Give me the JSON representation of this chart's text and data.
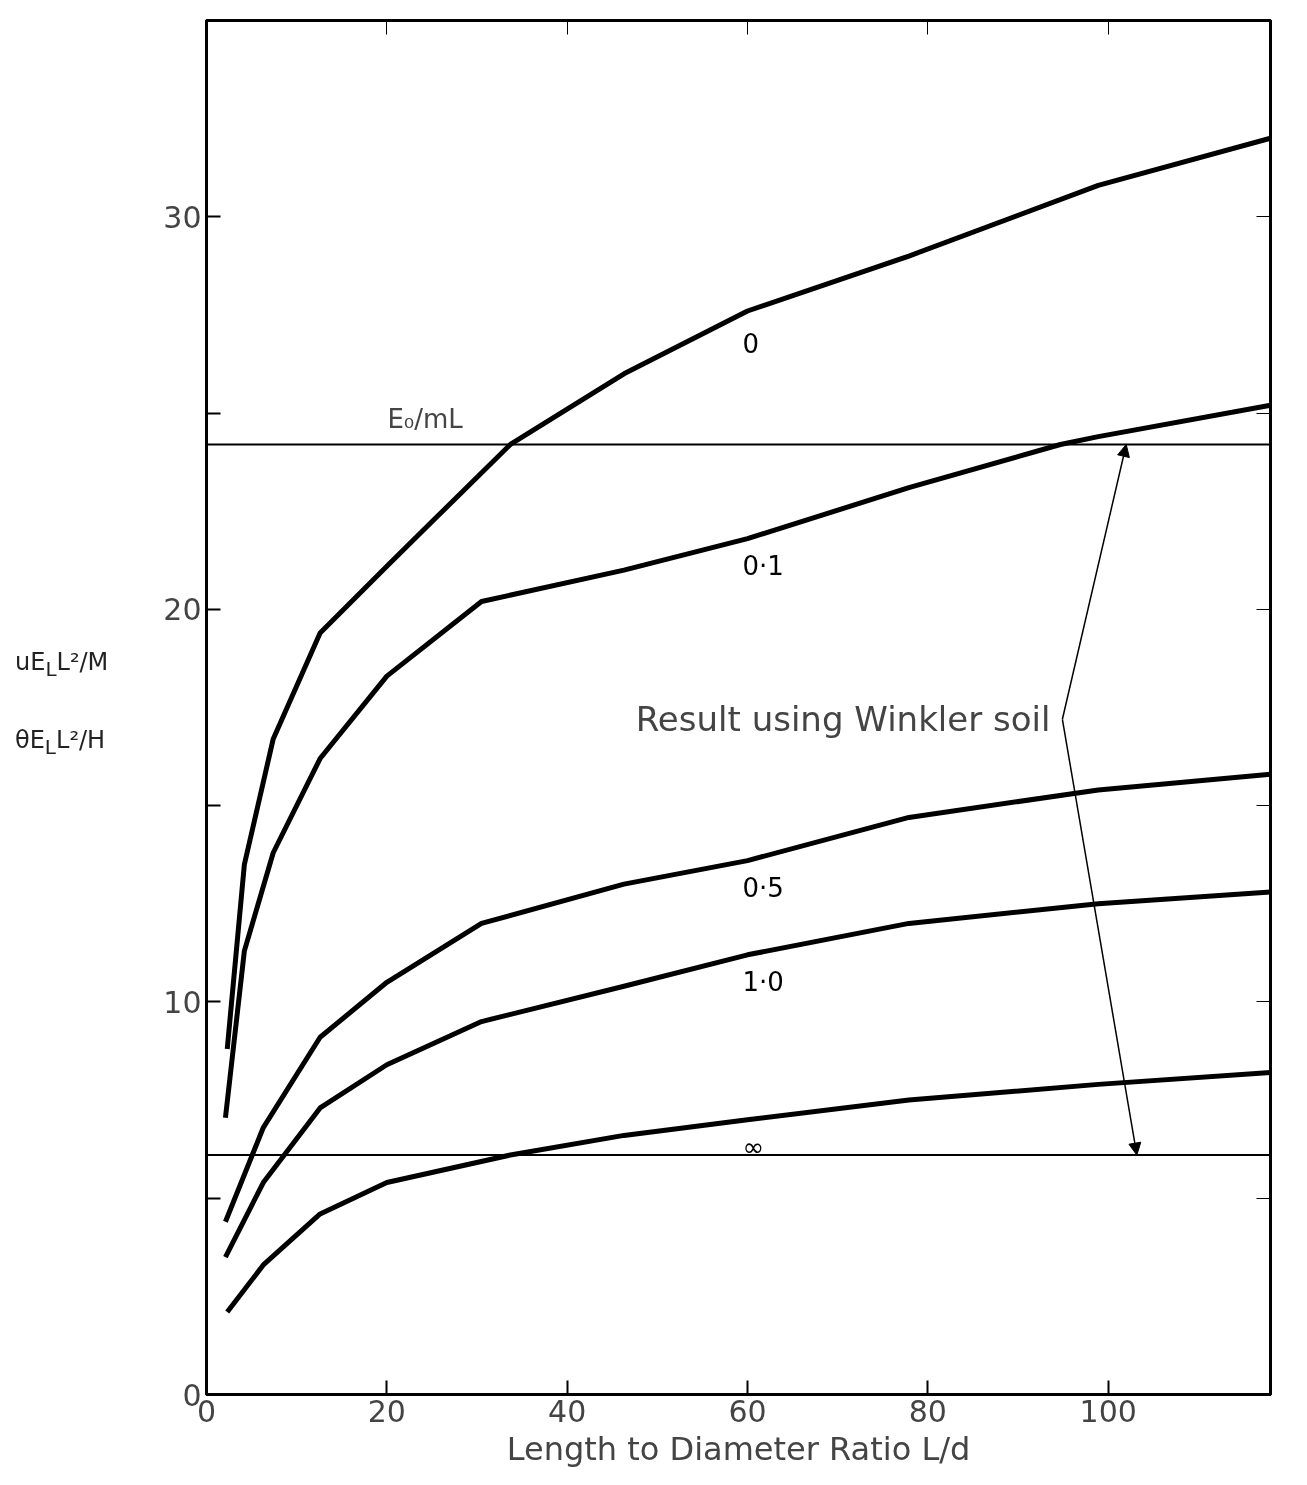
{
  "chart_data": {
    "type": "line",
    "xlabel": "Length to Diameter Ratio L/d",
    "ylabel": "uE$_{L}$L²/M\nθE$_{L}$L²/H",
    "legend_title": "E₀/mL",
    "xlim": [
      0,
      118
    ],
    "ylim": [
      0,
      35
    ],
    "xticks": [
      0,
      20,
      40,
      60,
      80,
      100
    ],
    "yticks": [
      0,
      {
        "value": 5,
        "label": null
      },
      10,
      {
        "value": 15,
        "label": null
      },
      20,
      {
        "value": 25,
        "label": null
      },
      30
    ],
    "grid": false,
    "line_style": "solid",
    "series": [
      {
        "name": "0",
        "color": "#000000",
        "x": [
          2.3,
          4.2,
          7.4,
          12.6,
          20,
          25.3,
          33.7,
          46.3,
          60,
          77.9,
          98.9,
          118
        ],
        "values": [
          8.8,
          13.5,
          16.7,
          19.4,
          21.1,
          22.3,
          24.2,
          26.0,
          27.6,
          29.0,
          30.8,
          32.0
        ]
      },
      {
        "name": "0·1",
        "color": "#000000",
        "x": [
          2.1,
          4.2,
          7.4,
          12.6,
          20,
          30.5,
          46.3,
          60,
          77.9,
          94.7,
          98.9,
          118
        ],
        "values": [
          7.05,
          11.3,
          13.8,
          16.2,
          18.3,
          20.2,
          21.0,
          21.8,
          23.1,
          24.2,
          24.4,
          25.2
        ]
      },
      {
        "name": "0·5",
        "color": "#000000",
        "x": [
          2.1,
          6.3,
          12.6,
          20,
          30.5,
          46.3,
          60,
          77.9,
          98.9,
          118
        ],
        "values": [
          4.4,
          6.8,
          9.1,
          10.5,
          12.0,
          13.0,
          13.6,
          14.7,
          15.4,
          15.8
        ]
      },
      {
        "name": "1·0",
        "color": "#000000",
        "x": [
          2.1,
          6.3,
          12.6,
          20,
          30.5,
          46.3,
          60,
          77.9,
          98.9,
          118
        ],
        "values": [
          3.5,
          5.4,
          7.3,
          8.4,
          9.5,
          10.4,
          11.2,
          12.0,
          12.5,
          12.8
        ]
      },
      {
        "name": "∞",
        "color": "#000000",
        "x": [
          2.3,
          6.3,
          12.6,
          20,
          33.7,
          46.3,
          60,
          77.9,
          98.9,
          118
        ],
        "values": [
          2.1,
          3.3,
          4.6,
          5.4,
          6.1,
          6.6,
          7.0,
          7.5,
          7.9,
          8.2
        ]
      }
    ],
    "ref_lines": [
      {
        "axis": "y",
        "value": 24.2,
        "color": "#000000"
      },
      {
        "axis": "y",
        "value": 6.1,
        "color": "#000000"
      }
    ],
    "annotations": [
      {
        "text": "Result using Winkler soil",
        "x": 102,
        "y": 24.2
      }
    ]
  }
}
